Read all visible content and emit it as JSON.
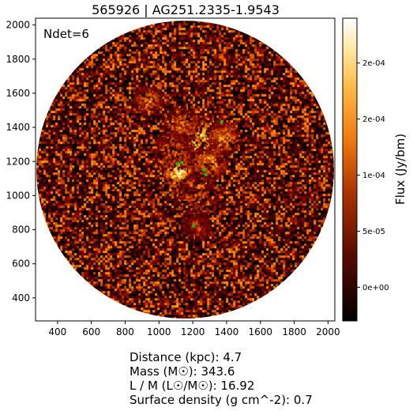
{
  "title": "565926 | AG251.2335-1.9543",
  "annotation": "Ndet=6",
  "colorbar": {
    "label": "Flux (Jy/bm)",
    "ticks": [
      "0e+00",
      "5e-05",
      "1e-04",
      "2e-04",
      "2e-04"
    ],
    "tick_values": [
      0.0,
      5e-05,
      0.0001,
      0.00015,
      0.0002
    ],
    "range": [
      -3e-05,
      0.00024
    ],
    "colormap": "afmhot"
  },
  "info": {
    "distance": "Distance (kpc): 4.7",
    "mass": "Mass (M☉): 343.6",
    "lm": "L / M (L☉/M☉): 16.92",
    "surface_density": "Surface density (g cm^-2): 0.7"
  },
  "chart_data": {
    "type": "heatmap",
    "title": "565926 | AG251.2335-1.9543",
    "xlabel": "",
    "ylabel": "",
    "xlim": [
      270,
      2040
    ],
    "ylim": [
      265,
      2040
    ],
    "xticks": [
      400,
      600,
      800,
      1000,
      1200,
      1400,
      1600,
      1800,
      2000
    ],
    "yticks": [
      400,
      600,
      800,
      1000,
      1200,
      1400,
      1600,
      1800,
      2000
    ],
    "field_center": [
      1155,
      1152
    ],
    "field_radius": 880,
    "colors": {
      "background": "#000000",
      "markers": "#1db31d"
    },
    "detections": [
      {
        "x": 1108,
        "y": 1185
      },
      {
        "x": 1135,
        "y": 1193
      },
      {
        "x": 1265,
        "y": 1150
      },
      {
        "x": 1278,
        "y": 1122
      },
      {
        "x": 1370,
        "y": 1432
      },
      {
        "x": 1205,
        "y": 822
      }
    ],
    "bright_regions": [
      {
        "x": 1250,
        "y": 1330,
        "r": 150,
        "level": 0.85
      },
      {
        "x": 1110,
        "y": 1140,
        "r": 90,
        "level": 0.95
      },
      {
        "x": 1290,
        "y": 1200,
        "r": 110,
        "level": 0.7
      },
      {
        "x": 1380,
        "y": 1340,
        "r": 100,
        "level": 0.7
      },
      {
        "x": 930,
        "y": 1560,
        "r": 90,
        "level": 0.6
      },
      {
        "x": 1120,
        "y": 1420,
        "r": 110,
        "level": 0.6
      },
      {
        "x": 1230,
        "y": 1000,
        "r": 140,
        "level": 0.5
      },
      {
        "x": 1080,
        "y": 1270,
        "r": 120,
        "level": 0.55
      },
      {
        "x": 1220,
        "y": 820,
        "r": 80,
        "level": 0.5
      }
    ]
  }
}
